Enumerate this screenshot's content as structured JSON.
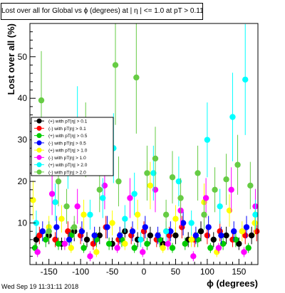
{
  "title": "Lost over all for Global vs ϕ (degrees) at | η | <= 1.0 at pT > 0.11",
  "date_stamp": "Wed Sep 19 11:31:11 2018",
  "chart_data": {
    "type": "scatter",
    "xlabel": "ϕ (degrees)",
    "ylabel": "Lost over all (%)",
    "xlim": [
      -180,
      180
    ],
    "ylim": [
      0,
      58
    ],
    "xticks": [
      -150,
      -100,
      -50,
      0,
      50,
      100,
      150
    ],
    "yticks": [
      10,
      20,
      30,
      40,
      50
    ],
    "grid": false,
    "legend_position": "left",
    "series": [
      {
        "name": "(+) with pT|η| > 0.1",
        "color": "#000000",
        "points": [
          [
            -170,
            6
          ],
          [
            -150,
            7
          ],
          [
            -130,
            5
          ],
          [
            -110,
            8
          ],
          [
            -90,
            6
          ],
          [
            -70,
            7
          ],
          [
            -50,
            5
          ],
          [
            -30,
            8
          ],
          [
            -10,
            6
          ],
          [
            10,
            7
          ],
          [
            30,
            5
          ],
          [
            50,
            7
          ],
          [
            70,
            6
          ],
          [
            90,
            8
          ],
          [
            110,
            6
          ],
          [
            130,
            7
          ],
          [
            150,
            5
          ],
          [
            170,
            7
          ]
        ]
      },
      {
        "name": "(-) with pT|η| > 0.1",
        "color": "#ff0000",
        "points": [
          [
            -165,
            7
          ],
          [
            -140,
            6
          ],
          [
            -120,
            8
          ],
          [
            -100,
            7
          ],
          [
            -80,
            5
          ],
          [
            -60,
            9
          ],
          [
            -40,
            6
          ],
          [
            -20,
            7
          ],
          [
            0,
            8
          ],
          [
            20,
            6
          ],
          [
            40,
            7
          ],
          [
            60,
            9
          ],
          [
            80,
            6
          ],
          [
            100,
            7
          ],
          [
            120,
            8
          ],
          [
            140,
            6
          ],
          [
            160,
            7
          ],
          [
            178,
            8
          ]
        ]
      },
      {
        "name": "(+) with pT|η| > 0.5",
        "color": "#00cc00",
        "points": [
          [
            -172,
            4
          ],
          [
            -155,
            6
          ],
          [
            -135,
            5
          ],
          [
            -115,
            7
          ],
          [
            -95,
            4
          ],
          [
            -75,
            6
          ],
          [
            -55,
            5
          ],
          [
            -35,
            6
          ],
          [
            -15,
            4
          ],
          [
            5,
            5
          ],
          [
            25,
            6
          ],
          [
            45,
            4
          ],
          [
            65,
            5
          ],
          [
            85,
            6
          ],
          [
            105,
            4
          ],
          [
            125,
            5
          ],
          [
            145,
            6
          ],
          [
            165,
            4
          ]
        ]
      },
      {
        "name": "(-) with pT|η| > 0.5",
        "color": "#0000ff",
        "points": [
          [
            -160,
            8
          ],
          [
            -138,
            9
          ],
          [
            -118,
            6
          ],
          [
            -98,
            8
          ],
          [
            -78,
            7
          ],
          [
            -58,
            9
          ],
          [
            -38,
            7
          ],
          [
            -18,
            8
          ],
          [
            2,
            9
          ],
          [
            22,
            7
          ],
          [
            42,
            8
          ],
          [
            62,
            10
          ],
          [
            82,
            7
          ],
          [
            102,
            9
          ],
          [
            122,
            7
          ],
          [
            142,
            8
          ],
          [
            162,
            9
          ]
        ]
      },
      {
        "name": "(+) with pT|η| > 1.0",
        "color": "#ffff00",
        "points": [
          [
            -175,
            15.5
          ],
          [
            -150,
            9
          ],
          [
            -130,
            11
          ],
          [
            -115,
            4
          ],
          [
            -95,
            12
          ],
          [
            -75,
            3
          ],
          [
            -50,
            10
          ],
          [
            -30,
            5
          ],
          [
            -10,
            12
          ],
          [
            10,
            19
          ],
          [
            30,
            4
          ],
          [
            50,
            11
          ],
          [
            75,
            6
          ],
          [
            95,
            15
          ],
          [
            115,
            3
          ],
          [
            135,
            13
          ],
          [
            155,
            8
          ],
          [
            175,
            10
          ]
        ]
      },
      {
        "name": "(-) with pT|η| > 1.0",
        "color": "#ff00ff",
        "points": [
          [
            -168,
            3
          ],
          [
            -145,
            17
          ],
          [
            -125,
            5
          ],
          [
            -105,
            14
          ],
          [
            -85,
            2
          ],
          [
            -62,
            19
          ],
          [
            -42,
            4
          ],
          [
            -22,
            16
          ],
          [
            -2,
            3
          ],
          [
            18,
            18
          ],
          [
            38,
            5
          ],
          [
            58,
            13
          ],
          [
            78,
            2
          ],
          [
            98,
            16
          ],
          [
            118,
            4
          ],
          [
            138,
            18
          ],
          [
            158,
            3
          ],
          [
            176,
            14
          ]
        ]
      },
      {
        "name": "(+) with pT|η| > 2.0",
        "color": "#00ffff",
        "points": [
          [
            -170,
            10
          ],
          [
            -140,
            15
          ],
          [
            -120,
            26
          ],
          [
            -105,
            33
          ],
          [
            -85,
            12
          ],
          [
            -65,
            16
          ],
          [
            -48,
            28
          ],
          [
            -30,
            11
          ],
          [
            -15,
            17
          ],
          [
            -5,
            6
          ],
          [
            15,
            22
          ],
          [
            35,
            8
          ],
          [
            55,
            20
          ],
          [
            75,
            10
          ],
          [
            100,
            30
          ],
          [
            120,
            14
          ],
          [
            140,
            35.5
          ],
          [
            160,
            44.5
          ],
          [
            176,
            12
          ]
        ]
      },
      {
        "name": "(-) with pT|η| > 2.0",
        "color": "#66cc44",
        "points": [
          [
            -162,
            39.5
          ],
          [
            -150,
            8
          ],
          [
            -135,
            20
          ],
          [
            -122,
            14
          ],
          [
            -110,
            9
          ],
          [
            -92,
            30
          ],
          [
            -70,
            18
          ],
          [
            -45,
            48
          ],
          [
            -40,
            20
          ],
          [
            -12,
            45
          ],
          [
            5,
            22
          ],
          [
            18,
            25.5
          ],
          [
            35,
            12
          ],
          [
            45,
            21
          ],
          [
            58,
            16
          ],
          [
            85,
            22
          ],
          [
            95,
            12
          ],
          [
            112,
            18
          ],
          [
            130,
            20.5
          ],
          [
            148,
            24
          ],
          [
            168,
            19
          ]
        ]
      }
    ]
  }
}
